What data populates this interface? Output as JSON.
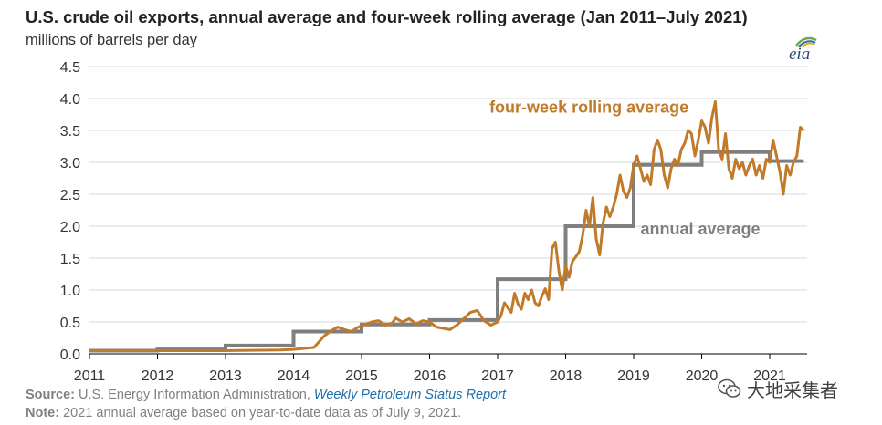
{
  "header": {
    "title": "U.S. crude oil exports, annual average and four-week rolling average (Jan 2011–July 2021)",
    "subtitle": "millions of barrels per day"
  },
  "logo": {
    "text": "eia",
    "icon": "eia-logo-icon"
  },
  "footer": {
    "source_label": "Source:",
    "source_text": " U.S. Energy Information Administration, ",
    "source_report": "Weekly Petroleum Status Report",
    "note_label": "Note:",
    "note_text": " 2021 annual average based on year-to-date data as of July 9, 2021."
  },
  "watermark": {
    "text": "大地采集者",
    "icon": "wechat-icon"
  },
  "colors": {
    "rolling": "#c07a2a",
    "annual": "#7f7f7f",
    "grid": "#d9d9d9"
  },
  "chart_data": {
    "type": "line",
    "title": "U.S. crude oil exports, annual average and four-week rolling average (Jan 2011–July 2021)",
    "ylabel": "millions of barrels per day",
    "xlim": [
      2011,
      2021.55
    ],
    "ylim": [
      0,
      4.5
    ],
    "grid": true,
    "x_ticks": [
      "2011",
      "2012",
      "2013",
      "2014",
      "2015",
      "2016",
      "2017",
      "2018",
      "2019",
      "2020",
      "2021"
    ],
    "y_ticks": [
      "0.0",
      "0.5",
      "1.0",
      "1.5",
      "2.0",
      "2.5",
      "3.0",
      "3.5",
      "4.0",
      "4.5"
    ],
    "annotations": [
      {
        "text": "four-week rolling average",
        "series": "rolling"
      },
      {
        "text": "annual average",
        "series": "annual"
      }
    ],
    "series": [
      {
        "key": "rolling",
        "x": [
          2011.0,
          2012.0,
          2013.0,
          2013.8,
          2014.0,
          2014.3,
          2014.45,
          2014.55,
          2014.65,
          2014.75,
          2014.85,
          2014.95,
          2015.05,
          2015.15,
          2015.25,
          2015.35,
          2015.45,
          2015.5,
          2015.6,
          2015.7,
          2015.8,
          2015.9,
          2016.0,
          2016.1,
          2016.2,
          2016.3,
          2016.4,
          2016.5,
          2016.6,
          2016.7,
          2016.8,
          2016.9,
          2017.0,
          2017.05,
          2017.1,
          2017.15,
          2017.2,
          2017.25,
          2017.3,
          2017.35,
          2017.4,
          2017.45,
          2017.5,
          2017.55,
          2017.6,
          2017.65,
          2017.7,
          2017.75,
          2017.8,
          2017.85,
          2017.9,
          2017.95,
          2018.0,
          2018.05,
          2018.1,
          2018.15,
          2018.2,
          2018.25,
          2018.3,
          2018.35,
          2018.4,
          2018.45,
          2018.5,
          2018.55,
          2018.6,
          2018.65,
          2018.7,
          2018.75,
          2018.8,
          2018.85,
          2018.9,
          2018.95,
          2019.0,
          2019.05,
          2019.1,
          2019.15,
          2019.2,
          2019.25,
          2019.3,
          2019.35,
          2019.4,
          2019.45,
          2019.5,
          2019.55,
          2019.6,
          2019.65,
          2019.7,
          2019.75,
          2019.8,
          2019.85,
          2019.9,
          2019.95,
          2020.0,
          2020.05,
          2020.1,
          2020.15,
          2020.2,
          2020.25,
          2020.3,
          2020.35,
          2020.4,
          2020.45,
          2020.5,
          2020.55,
          2020.6,
          2020.65,
          2020.7,
          2020.75,
          2020.8,
          2020.85,
          2020.9,
          2020.95,
          2021.0,
          2021.05,
          2021.1,
          2021.15,
          2021.2,
          2021.25,
          2021.3,
          2021.35,
          2021.4,
          2021.45,
          2021.5
        ],
        "y": [
          0.05,
          0.05,
          0.05,
          0.06,
          0.07,
          0.1,
          0.28,
          0.36,
          0.42,
          0.38,
          0.35,
          0.42,
          0.46,
          0.5,
          0.52,
          0.45,
          0.48,
          0.56,
          0.5,
          0.55,
          0.47,
          0.52,
          0.5,
          0.42,
          0.4,
          0.38,
          0.45,
          0.55,
          0.65,
          0.68,
          0.52,
          0.45,
          0.5,
          0.6,
          0.8,
          0.72,
          0.65,
          0.95,
          0.78,
          0.7,
          0.95,
          0.85,
          1.0,
          0.8,
          0.75,
          0.9,
          1.02,
          0.85,
          1.65,
          1.75,
          1.3,
          1.0,
          1.38,
          1.2,
          1.45,
          1.52,
          1.6,
          1.85,
          2.25,
          2.0,
          2.45,
          1.8,
          1.55,
          2.05,
          2.3,
          2.15,
          2.3,
          2.5,
          2.8,
          2.55,
          2.45,
          2.6,
          2.95,
          3.1,
          2.9,
          2.7,
          2.8,
          2.65,
          3.2,
          3.35,
          3.2,
          2.8,
          2.6,
          2.9,
          3.05,
          2.95,
          3.2,
          3.3,
          3.5,
          3.45,
          3.1,
          3.35,
          3.65,
          3.55,
          3.3,
          3.7,
          3.95,
          3.2,
          3.05,
          3.45,
          2.9,
          2.75,
          3.05,
          2.9,
          3.0,
          2.8,
          2.95,
          3.05,
          2.8,
          2.95,
          2.75,
          3.05,
          3.0,
          3.35,
          3.1,
          2.85,
          2.5,
          2.95,
          2.8,
          3.0,
          3.1,
          3.55,
          3.5
        ]
      },
      {
        "key": "annual",
        "x": [
          2011,
          2012,
          2012,
          2013,
          2013,
          2014,
          2014,
          2015,
          2015,
          2016,
          2016,
          2017,
          2017,
          2018,
          2018,
          2019,
          2019,
          2020,
          2020,
          2021,
          2021,
          2021.5
        ],
        "y": [
          0.05,
          0.05,
          0.07,
          0.07,
          0.13,
          0.13,
          0.35,
          0.35,
          0.46,
          0.46,
          0.53,
          0.53,
          1.17,
          1.17,
          2.0,
          2.0,
          2.96,
          2.96,
          3.16,
          3.16,
          3.02,
          3.02
        ]
      }
    ]
  }
}
